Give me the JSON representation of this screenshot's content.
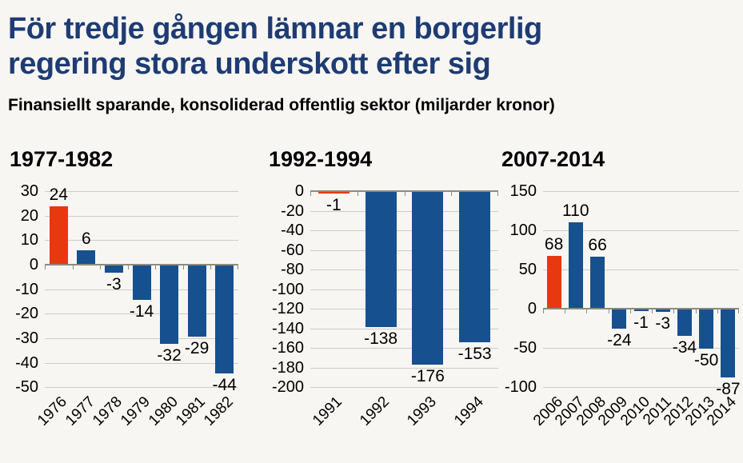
{
  "page": {
    "title_line1": "För tredje gången lämnar en borgerlig",
    "title_line2": "regering stora underskott efter sig",
    "subtitle": "Finansiellt sparande, konsoliderad offentlig sektor (miljarder kronor)"
  },
  "colors": {
    "background": "#f7f6f3",
    "title_blue": "#1e3c73",
    "bar_blue": "#17508e",
    "bar_red": "#e8380f",
    "grid": "#cccccc",
    "axis": "#8b8b80"
  },
  "chart_data": [
    {
      "type": "bar",
      "title": "1977-1982",
      "categories": [
        "1976",
        "1977",
        "1978",
        "1979",
        "1980",
        "1981",
        "1982"
      ],
      "values": [
        24,
        6,
        -3,
        -14,
        -32,
        -29,
        -44
      ],
      "highlight_index": 0,
      "ylim": [
        -50,
        30
      ],
      "ytick_step": 10,
      "grid": true,
      "xlabel": "",
      "ylabel": "",
      "legend": "none",
      "value_labels": true
    },
    {
      "type": "bar",
      "title": "1992-1994",
      "categories": [
        "1991",
        "1992",
        "1993",
        "1994"
      ],
      "values": [
        -1,
        -138,
        -176,
        -153
      ],
      "highlight_index": 0,
      "ylim": [
        -200,
        0
      ],
      "ytick_step": 20,
      "grid": true,
      "xlabel": "",
      "ylabel": "",
      "legend": "none",
      "value_labels": true
    },
    {
      "type": "bar",
      "title": "2007-2014",
      "categories": [
        "2006",
        "2007",
        "2008",
        "2009",
        "2010",
        "2011",
        "2012",
        "2013",
        "2014"
      ],
      "values": [
        68,
        110,
        66,
        -24,
        -1,
        -3,
        -34,
        -50,
        -87
      ],
      "highlight_index": 0,
      "ylim": [
        -100,
        150
      ],
      "ytick_step": 50,
      "grid": true,
      "xlabel": "",
      "ylabel": "",
      "legend": "none",
      "value_labels": true
    }
  ]
}
